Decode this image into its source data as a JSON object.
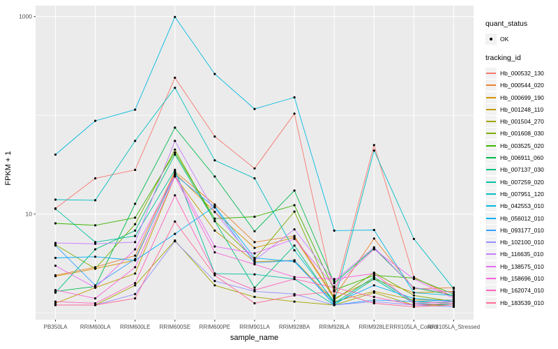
{
  "figure": {
    "y_tick_labels": [
      "1000",
      "10"
    ],
    "legend": {
      "quant_status_title": "quant_status",
      "quant_status_item": "OK",
      "tracking_id_title": "tracking_id"
    },
    "colors": {
      "panel_background": "#EBEBEB",
      "gridline": "#FFFFFF",
      "tick_text": "#4D4D4D",
      "point": "#000000"
    }
  },
  "chart_data": {
    "type": "line",
    "title": "",
    "xlabel": "sample_name",
    "ylabel": "FPKM + 1",
    "yscale": "log10",
    "ylim": [
      0.85,
      1250
    ],
    "y_major_breaks": [
      10,
      1000
    ],
    "y_minor_breaks": [
      1,
      100
    ],
    "grid": true,
    "legend_position": "right",
    "point_status_label": "OK",
    "x_categories": [
      "PB350LA",
      "RRIM600LA",
      "RRIM600LE",
      "RRIM600SE",
      "RRIM600PE",
      "RRIM901LA",
      "RRIM928BA",
      "RRIM928LA",
      "RRIM928LE",
      "RRII105LA_Control",
      "RRII105LA_Stressed"
    ],
    "series": [
      {
        "name": "Hb_000532_130",
        "color": "#F8766D",
        "values": [
          11.4,
          23,
          28,
          240,
          61,
          29,
          104,
          1.5,
          50,
          2.3,
          1.45
        ]
      },
      {
        "name": "Hb_000544_020",
        "color": "#EA8331",
        "values": [
          2.4,
          2.9,
          3.8,
          27,
          12.5,
          5.2,
          6.0,
          1.45,
          5.65,
          1.75,
          1.8
        ]
      },
      {
        "name": "Hb_000699_190",
        "color": "#D89000",
        "values": [
          2.35,
          2.8,
          3.4,
          26,
          10.5,
          4.55,
          5.8,
          1.4,
          2.2,
          1.6,
          1.65
        ]
      },
      {
        "name": "Hb_001248_110",
        "color": "#C09B00",
        "values": [
          1.25,
          1.8,
          2.5,
          24,
          6.8,
          3.3,
          3.4,
          1.3,
          1.65,
          1.35,
          1.35
        ]
      },
      {
        "name": "Hb_001504_270",
        "color": "#A3A500",
        "values": [
          1.2,
          1.2,
          1.9,
          5.4,
          1.9,
          1.45,
          1.3,
          1.2,
          1.6,
          1.2,
          1.2
        ]
      },
      {
        "name": "Hb_001608_030",
        "color": "#7CAE00",
        "values": [
          4.9,
          2.8,
          7.9,
          45,
          8.5,
          3.5,
          10.6,
          1.35,
          2.55,
          1.5,
          1.3
        ]
      },
      {
        "name": "Hb_003525_020",
        "color": "#39B600",
        "values": [
          8.05,
          7.7,
          9.2,
          42,
          9.0,
          9.4,
          12.3,
          1.7,
          2.4,
          2.25,
          1.55
        ]
      },
      {
        "name": "Hb_006911_060",
        "color": "#00BB4E",
        "values": [
          1.65,
          1.85,
          12.7,
          75,
          24,
          6.7,
          17.3,
          2.0,
          4.5,
          1.8,
          1.5
        ]
      },
      {
        "name": "Hb_007137_030",
        "color": "#00BF7D",
        "values": [
          1.6,
          4.4,
          6.8,
          40,
          8.5,
          1.8,
          4.8,
          1.25,
          2.3,
          1.3,
          1.25
        ]
      },
      {
        "name": "Hb_007259_020",
        "color": "#00C1A3",
        "values": [
          11.3,
          5.2,
          6.0,
          28,
          2.5,
          2.45,
          2.2,
          1.2,
          2.2,
          1.25,
          1.2
        ]
      },
      {
        "name": "Hb_007951_120",
        "color": "#00BFC4",
        "values": [
          14,
          13.8,
          55,
          190,
          35,
          23,
          4.3,
          1.3,
          44,
          5.6,
          1.75
        ]
      },
      {
        "name": "Hb_042553_010",
        "color": "#00BAE0",
        "values": [
          40,
          88,
          114,
          990,
          262,
          116,
          152,
          6.8,
          6.9,
          1.6,
          1.5
        ]
      },
      {
        "name": "Hb_056012_010",
        "color": "#00B0F6",
        "values": [
          3.6,
          3.7,
          3.4,
          6.3,
          12.0,
          3.6,
          3.3,
          1.25,
          1.9,
          1.4,
          1.3
        ]
      },
      {
        "name": "Hb_093177_010",
        "color": "#35A2FF",
        "values": [
          4.8,
          1.9,
          3.5,
          25,
          11.7,
          3.2,
          3.4,
          1.2,
          1.35,
          1.3,
          1.35
        ]
      },
      {
        "name": "Hb_102100_010",
        "color": "#9590FF",
        "values": [
          1.2,
          1.2,
          1.55,
          5.3,
          2.1,
          1.65,
          1.55,
          1.2,
          1.3,
          1.2,
          1.15
        ]
      },
      {
        "name": "Hb_116635_010",
        "color": "#C77CFF",
        "values": [
          5.1,
          5.0,
          5.2,
          55,
          10.5,
          3.4,
          7.0,
          2.1,
          4.6,
          1.8,
          1.6
        ]
      },
      {
        "name": "Hb_138575_010",
        "color": "#E76BF3",
        "values": [
          3.0,
          1.8,
          4.4,
          25,
          4.7,
          4.0,
          5.6,
          1.85,
          4.4,
          2.2,
          1.4
        ]
      },
      {
        "name": "Hb_158696_010",
        "color": "#FA62DB",
        "values": [
          1.7,
          1.4,
          2.9,
          24,
          4.1,
          3.1,
          2.3,
          2.2,
          2.5,
          1.25,
          1.3
        ]
      },
      {
        "name": "Hb_162074_010",
        "color": "#FF62BC",
        "values": [
          1.3,
          1.25,
          2.0,
          15.5,
          2.5,
          1.7,
          2.2,
          1.8,
          1.45,
          1.2,
          1.25
        ]
      },
      {
        "name": "Hb_183539_010",
        "color": "#FF6A98",
        "values": [
          1.2,
          1.2,
          1.4,
          8.4,
          2.4,
          1.25,
          1.5,
          1.65,
          1.25,
          1.15,
          1.2
        ]
      }
    ]
  }
}
